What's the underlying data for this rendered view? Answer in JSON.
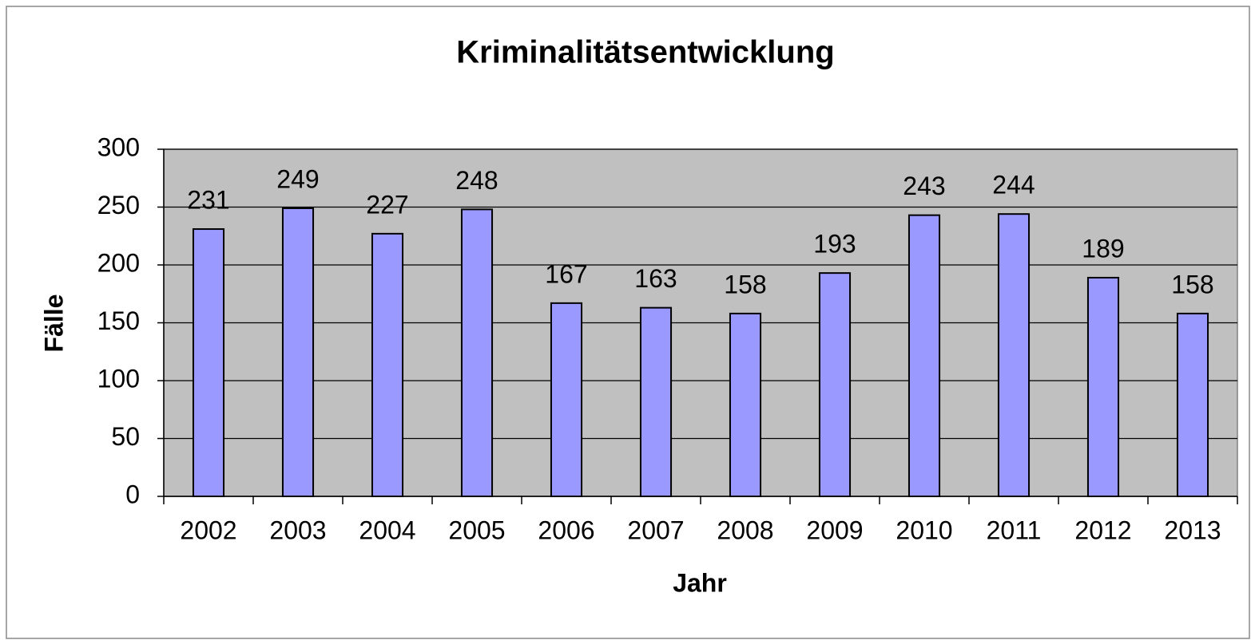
{
  "chart_data": {
    "type": "bar",
    "title": "Kriminalitätsentwicklung",
    "x_label": "Jahr",
    "y_label": "Fälle",
    "categories": [
      "2002",
      "2003",
      "2004",
      "2005",
      "2006",
      "2007",
      "2008",
      "2009",
      "2010",
      "2011",
      "2012",
      "2013"
    ],
    "values": [
      231,
      249,
      227,
      248,
      167,
      163,
      158,
      193,
      243,
      244,
      189,
      158
    ],
    "color": "#9999ff",
    "ylim": [
      0,
      300
    ],
    "yticks": [
      0,
      50,
      100,
      150,
      200,
      250,
      300
    ],
    "grid": true
  }
}
